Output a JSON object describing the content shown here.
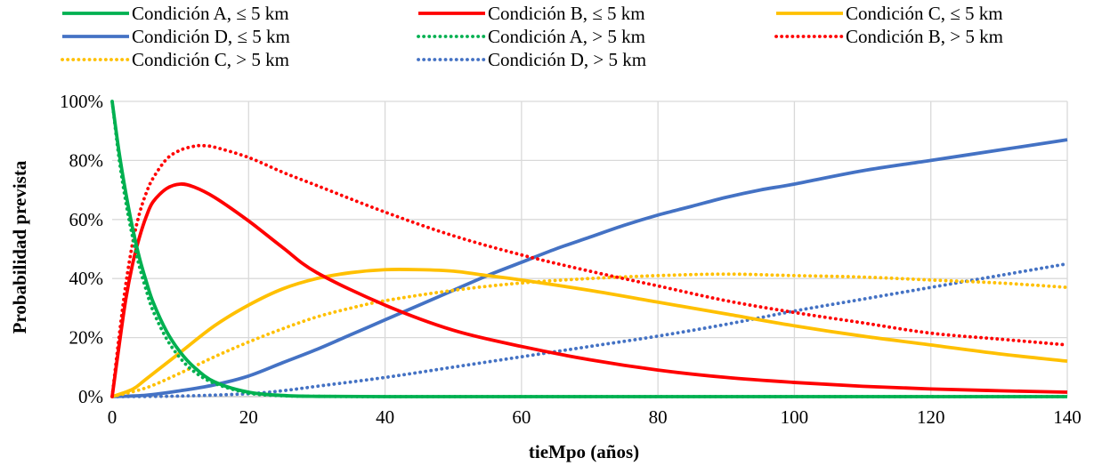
{
  "chart_data": {
    "type": "line",
    "xlabel": "tieMpo (años)",
    "ylabel": "Probabilidad prevista",
    "xlim": [
      0,
      140
    ],
    "ylim": [
      0,
      100
    ],
    "x_ticks": [
      0,
      20,
      40,
      60,
      80,
      100,
      120,
      140
    ],
    "y_ticks": [
      0,
      20,
      40,
      60,
      80,
      100
    ],
    "y_tick_labels": [
      "0%",
      "20%",
      "40%",
      "60%",
      "80%",
      "100%"
    ],
    "grid": true,
    "legend_position": "top",
    "series": [
      {
        "name": "Condición A, ≤ 5 km",
        "color": "#00b050",
        "dash": "solid",
        "x": [
          0,
          1,
          2,
          3,
          4,
          5,
          6,
          8,
          10,
          12,
          15,
          20,
          25,
          30,
          40,
          60,
          80,
          100,
          120,
          140
        ],
        "y": [
          100,
          83,
          69,
          57,
          47,
          39,
          32,
          22,
          15,
          10,
          5,
          1.5,
          0.4,
          0.1,
          0,
          0,
          0,
          0,
          0,
          0
        ]
      },
      {
        "name": "Condición B, ≤ 5 km",
        "color": "#ff0000",
        "dash": "solid",
        "x": [
          0,
          1,
          2,
          3,
          4,
          5,
          6,
          8,
          10,
          12,
          15,
          20,
          25,
          30,
          40,
          50,
          60,
          70,
          80,
          90,
          100,
          110,
          120,
          130,
          140
        ],
        "y": [
          0,
          17,
          33,
          45,
          54,
          61,
          66,
          70.5,
          72,
          71,
          67.5,
          59.5,
          50.5,
          42,
          31,
          22.5,
          17,
          12.5,
          9,
          6.5,
          4.8,
          3.5,
          2.6,
          2,
          1.5
        ]
      },
      {
        "name": "Condición C, ≤ 5 km",
        "color": "#ffc000",
        "dash": "solid",
        "x": [
          0,
          3,
          5,
          10,
          15,
          20,
          25,
          30,
          35,
          40,
          45,
          50,
          55,
          60,
          70,
          80,
          90,
          100,
          110,
          120,
          130,
          140
        ],
        "y": [
          0,
          2.5,
          6,
          15,
          24,
          31,
          36.5,
          40,
          42,
          43,
          43,
          42.5,
          41,
          39.5,
          36,
          32,
          28,
          24,
          20.5,
          17.5,
          14.5,
          12
        ]
      },
      {
        "name": "Condición D, ≤ 5 km",
        "color": "#4472c4",
        "dash": "solid",
        "x": [
          0,
          5,
          10,
          15,
          20,
          25,
          30,
          35,
          40,
          45,
          50,
          55,
          60,
          65,
          70,
          75,
          80,
          85,
          90,
          95,
          100,
          110,
          120,
          130,
          140
        ],
        "y": [
          0,
          0.5,
          2,
          4,
          7,
          11.5,
          16,
          21,
          26,
          31,
          36,
          41,
          45.5,
          50,
          54,
          58,
          61.5,
          64.5,
          67.5,
          70,
          72,
          76.5,
          80,
          83.5,
          87
        ]
      },
      {
        "name": "Condición A, > 5 km",
        "color": "#00b050",
        "dash": "dotted",
        "x": [
          0,
          1,
          2,
          3,
          4,
          5,
          6,
          8,
          10,
          12,
          15,
          20,
          25,
          30,
          40,
          60,
          80,
          100,
          120,
          140
        ],
        "y": [
          100,
          81,
          66,
          54,
          44,
          36,
          29,
          19.5,
          13,
          8.5,
          4.5,
          1.2,
          0.3,
          0.1,
          0,
          0,
          0,
          0,
          0,
          0
        ]
      },
      {
        "name": "Condición B, > 5 km",
        "color": "#ff0000",
        "dash": "dotted",
        "x": [
          0,
          1,
          2,
          3,
          4,
          5,
          6,
          8,
          10,
          12,
          13,
          15,
          20,
          25,
          30,
          40,
          50,
          60,
          70,
          80,
          90,
          100,
          110,
          120,
          130,
          140
        ],
        "y": [
          0,
          20,
          38,
          52,
          62,
          69,
          74,
          80.5,
          83.5,
          84.8,
          85,
          84.5,
          81,
          76,
          71.5,
          62.5,
          54.5,
          48,
          42.5,
          37.5,
          32.5,
          28.5,
          25,
          21.5,
          19.5,
          17.5
        ]
      },
      {
        "name": "Condición C, > 5 km",
        "color": "#ffc000",
        "dash": "dotted",
        "x": [
          0,
          5,
          10,
          15,
          20,
          25,
          30,
          35,
          40,
          50,
          60,
          70,
          80,
          90,
          100,
          110,
          120,
          130,
          140
        ],
        "y": [
          0,
          3,
          8,
          13.5,
          18.5,
          23,
          27,
          30,
          32.5,
          36,
          38.5,
          40,
          41,
          41.5,
          41,
          40.5,
          39.5,
          38.5,
          37
        ]
      },
      {
        "name": "Condición D, > 5 km",
        "color": "#4472c4",
        "dash": "dotted",
        "x": [
          0,
          10,
          20,
          25,
          30,
          40,
          50,
          60,
          70,
          80,
          90,
          100,
          110,
          120,
          130,
          140
        ],
        "y": [
          0,
          0.2,
          1,
          2,
          3.5,
          6.5,
          10,
          13.5,
          17,
          20.5,
          24.5,
          29,
          33,
          37,
          41,
          45
        ]
      }
    ]
  }
}
